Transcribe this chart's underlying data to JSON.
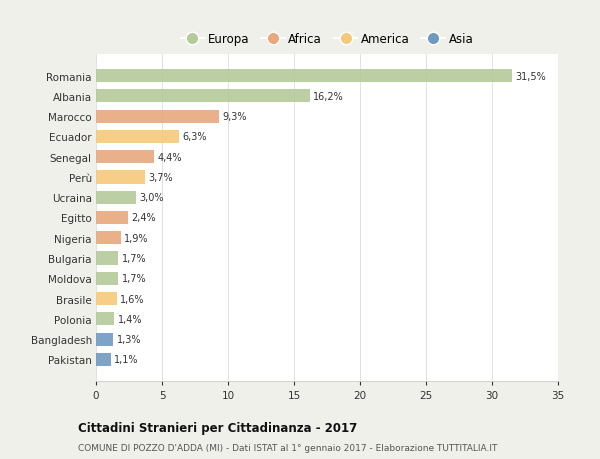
{
  "countries": [
    "Romania",
    "Albania",
    "Marocco",
    "Ecuador",
    "Senegal",
    "Perù",
    "Ucraina",
    "Egitto",
    "Nigeria",
    "Bulgaria",
    "Moldova",
    "Brasile",
    "Polonia",
    "Bangladesh",
    "Pakistan"
  ],
  "values": [
    31.5,
    16.2,
    9.3,
    6.3,
    4.4,
    3.7,
    3.0,
    2.4,
    1.9,
    1.7,
    1.7,
    1.6,
    1.4,
    1.3,
    1.1
  ],
  "labels": [
    "31,5%",
    "16,2%",
    "9,3%",
    "6,3%",
    "4,4%",
    "3,7%",
    "3,0%",
    "2,4%",
    "1,9%",
    "1,7%",
    "1,7%",
    "1,6%",
    "1,4%",
    "1,3%",
    "1,1%"
  ],
  "colors": [
    "#b5c99a",
    "#b5c99a",
    "#e8a87c",
    "#f5c97a",
    "#e8a87c",
    "#f5c97a",
    "#b5c99a",
    "#e8a87c",
    "#e8a87c",
    "#b5c99a",
    "#b5c99a",
    "#f5c97a",
    "#b5c99a",
    "#7099c0",
    "#7099c0"
  ],
  "legend_labels": [
    "Europa",
    "Africa",
    "America",
    "Asia"
  ],
  "legend_colors": [
    "#b5c99a",
    "#e8a87c",
    "#f5c97a",
    "#7099c0"
  ],
  "title": "Cittadini Stranieri per Cittadinanza - 2017",
  "subtitle": "COMUNE DI POZZO D'ADDA (MI) - Dati ISTAT al 1° gennaio 2017 - Elaborazione TUTTITALIA.IT",
  "xlim": [
    0,
    35
  ],
  "xticks": [
    0,
    5,
    10,
    15,
    20,
    25,
    30,
    35
  ],
  "bg_color": "#f0f0eb",
  "plot_bg_color": "#ffffff"
}
